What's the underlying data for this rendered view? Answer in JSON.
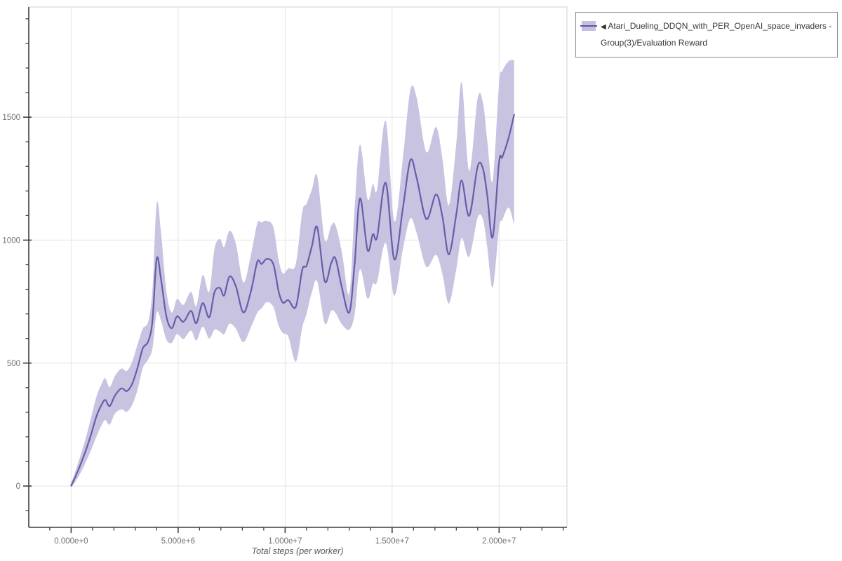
{
  "legend": {
    "collapse_icon": "◀",
    "items": [
      {
        "label": "Atari_Dueling_DDQN_with_PER_OpenAI_space_invaders - Group(3)/Evaluation Reward",
        "swatch_band_color": "#c3bfe0",
        "swatch_line_color": "#5b55a0"
      }
    ]
  },
  "colors": {
    "line": "#655fa9",
    "band": "#c7c3e1",
    "grid": "#e4e4e4",
    "axis": "#3f3f3f",
    "plot_border": "#e1e1e1",
    "tick_label": "#707070",
    "axis_title": "#5a5a5a",
    "legend_border": "#8c8c8c",
    "legend_text": "#383838"
  },
  "chart_data": {
    "type": "line",
    "title": "",
    "grid": true,
    "legend_position": "outside-top-right",
    "x_axis": {
      "title": "Total steps (per worker)",
      "range_e6": [
        -1.98,
        23.17
      ],
      "minor_step_e6": 1,
      "major_ticks": [
        {
          "value_e6": 0,
          "label": "0.000e+0"
        },
        {
          "value_e6": 5,
          "label": "5.000e+6"
        },
        {
          "value_e6": 10,
          "label": "1.000e+7"
        },
        {
          "value_e6": 15,
          "label": "1.500e+7"
        },
        {
          "value_e6": 20,
          "label": "2.000e+7"
        }
      ]
    },
    "y_axis": {
      "title": "",
      "range": [
        -168,
        1948
      ],
      "minor_step": 100,
      "major_ticks": [
        {
          "value": 0,
          "label": "0"
        },
        {
          "value": 500,
          "label": "500"
        },
        {
          "value": 1000,
          "label": "1000"
        },
        {
          "value": 1500,
          "label": "1500"
        }
      ]
    },
    "series": [
      {
        "name": "Atari_Dueling_DDQN_with_PER_OpenAI_space_invaders - Group(3)/Evaluation Reward",
        "kind": "mean-with-confidence-band",
        "color": "#655fa9",
        "band_color": "#c7c3e1",
        "x_e6": [
          0,
          0.2,
          0.45,
          0.7,
          0.95,
          1.2,
          1.45,
          1.6,
          1.8,
          2.05,
          2.35,
          2.6,
          2.85,
          3.1,
          3.35,
          3.6,
          3.8,
          4.0,
          4.2,
          4.45,
          4.7,
          4.95,
          5.25,
          5.6,
          5.85,
          6.15,
          6.45,
          6.7,
          6.95,
          7.15,
          7.4,
          7.7,
          8.05,
          8.4,
          8.7,
          8.9,
          9.15,
          9.45,
          9.7,
          9.9,
          10.15,
          10.5,
          10.8,
          11.0,
          11.25,
          11.5,
          11.85,
          12.15,
          12.35,
          12.65,
          13.0,
          13.25,
          13.5,
          13.85,
          14.1,
          14.3,
          14.7,
          15.1,
          15.5,
          15.85,
          16.15,
          16.6,
          17.05,
          17.35,
          17.65,
          18.0,
          18.25,
          18.6,
          19.0,
          19.25,
          19.45,
          19.7,
          20.0,
          20.15,
          20.45,
          20.7
        ],
        "mean": [
          2,
          38,
          90,
          148,
          215,
          288,
          335,
          350,
          325,
          368,
          397,
          386,
          415,
          480,
          560,
          588,
          672,
          925,
          840,
          690,
          642,
          690,
          668,
          712,
          662,
          744,
          686,
          788,
          806,
          775,
          852,
          812,
          706,
          792,
          912,
          903,
          924,
          902,
          790,
          746,
          756,
          729,
          880,
          896,
          975,
          1052,
          833,
          905,
          926,
          808,
          706,
          905,
          1170,
          960,
          1024,
          1013,
          1233,
          922,
          1128,
          1325,
          1252,
          1086,
          1186,
          1096,
          942,
          1105,
          1243,
          1099,
          1300,
          1289,
          1178,
          1012,
          1318,
          1338,
          1418,
          1510
        ],
        "lo": [
          -8,
          18,
          55,
          100,
          150,
          205,
          252,
          268,
          250,
          295,
          312,
          302,
          330,
          390,
          480,
          515,
          560,
          705,
          672,
          596,
          582,
          618,
          598,
          632,
          592,
          648,
          600,
          636,
          628,
          618,
          660,
          640,
          585,
          645,
          705,
          722,
          748,
          728,
          652,
          622,
          608,
          506,
          645,
          700,
          788,
          832,
          662,
          712,
          705,
          658,
          636,
          700,
          882,
          762,
          822,
          832,
          988,
          774,
          962,
          1088,
          1028,
          892,
          940,
          862,
          742,
          882,
          1008,
          932,
          1092,
          1082,
          968,
          808,
          1052,
          1082,
          1132,
          1062
        ],
        "hi": [
          12,
          60,
          128,
          200,
          285,
          368,
          420,
          438,
          402,
          448,
          478,
          468,
          505,
          575,
          640,
          668,
          800,
          1148,
          1030,
          792,
          705,
          760,
          737,
          790,
          733,
          858,
          790,
          965,
          1005,
          972,
          1038,
          985,
          828,
          940,
          1068,
          1072,
          1078,
          1052,
          918,
          864,
          885,
          903,
          1115,
          1148,
          1205,
          1260,
          1002,
          1058,
          1062,
          952,
          782,
          1135,
          1388,
          1168,
          1228,
          1208,
          1485,
          1078,
          1330,
          1610,
          1578,
          1358,
          1460,
          1330,
          1142,
          1392,
          1642,
          1282,
          1578,
          1556,
          1402,
          1242,
          1638,
          1688,
          1728,
          1732
        ]
      }
    ]
  }
}
